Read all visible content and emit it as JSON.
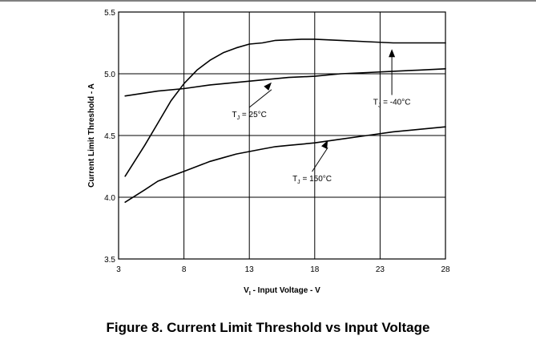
{
  "figure_caption": "Figure 8. Current Limit Threshold vs Input Voltage",
  "chart_data": {
    "type": "line",
    "xlabel": "V_I - Input Voltage - V",
    "xlabel_main": "V",
    "xlabel_sub": "I",
    "xlabel_rest": " - Input Voltage - V",
    "ylabel": "Current Limit Threshold - A",
    "xlim": [
      3,
      28
    ],
    "ylim": [
      3.5,
      5.5
    ],
    "x_ticks": [
      "3",
      "8",
      "13",
      "18",
      "23",
      "28"
    ],
    "y_ticks": [
      "3.5",
      "4.0",
      "4.5",
      "5.0",
      "5.5"
    ],
    "grid": true,
    "legend": "none",
    "series": [
      {
        "name": "T_J = -40°C",
        "x": [
          3.5,
          5,
          6,
          7,
          8,
          9,
          10,
          11,
          12,
          13,
          14,
          15,
          17,
          18,
          20,
          22,
          24,
          26,
          28
        ],
        "values": [
          4.17,
          4.42,
          4.6,
          4.78,
          4.92,
          5.03,
          5.11,
          5.17,
          5.21,
          5.24,
          5.25,
          5.27,
          5.28,
          5.28,
          5.27,
          5.26,
          5.25,
          5.25,
          5.25
        ]
      },
      {
        "name": "T_J = 25°C",
        "x": [
          3.5,
          6,
          8,
          10,
          12,
          14,
          16,
          18,
          20,
          22,
          24,
          26,
          28
        ],
        "values": [
          4.82,
          4.86,
          4.88,
          4.91,
          4.93,
          4.95,
          4.97,
          4.98,
          5.0,
          5.01,
          5.02,
          5.03,
          5.04
        ]
      },
      {
        "name": "T_J = 150°C",
        "x": [
          3.5,
          5,
          6,
          7,
          8,
          9,
          10,
          11,
          12,
          13,
          14,
          15,
          16,
          17,
          18,
          20,
          22,
          24,
          26,
          28
        ],
        "values": [
          3.96,
          4.06,
          4.13,
          4.17,
          4.21,
          4.25,
          4.29,
          4.32,
          4.35,
          4.37,
          4.39,
          4.41,
          4.42,
          4.43,
          4.44,
          4.47,
          4.5,
          4.53,
          4.55,
          4.57
        ]
      }
    ],
    "annotations": [
      {
        "main": "T",
        "sub": "J",
        "rest": " = -40°C",
        "x": 23.9,
        "y": 4.75,
        "arrow_to": [
          23.9,
          5.2
        ]
      },
      {
        "main": "T",
        "sub": "J",
        "rest": " = 25°C",
        "x": 13.0,
        "y": 4.65,
        "arrow_to": [
          14.7,
          4.93
        ]
      },
      {
        "main": "T",
        "sub": "J",
        "rest": " = 150°C",
        "x": 17.8,
        "y": 4.13,
        "arrow_to": [
          19.0,
          4.46
        ]
      }
    ]
  }
}
